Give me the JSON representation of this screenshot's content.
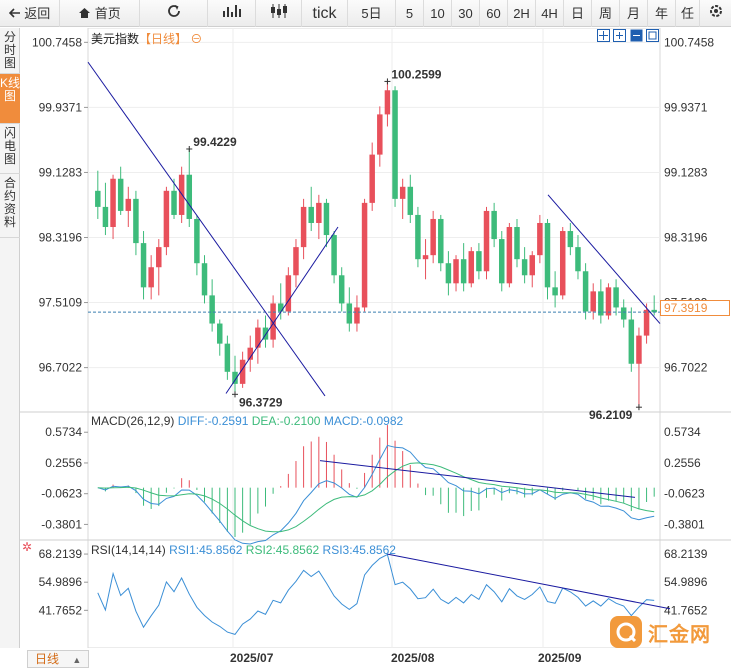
{
  "toolbar": {
    "back_label": "返回",
    "home_label": "首页",
    "tick_label": "tick",
    "periods": [
      "5日",
      "5",
      "10",
      "30",
      "60",
      "2H",
      "4H",
      "日",
      "周",
      "月",
      "年",
      "任"
    ]
  },
  "sidebar": {
    "tabs": [
      "分时图",
      "K线图",
      "闪电图",
      "合约资料"
    ]
  },
  "main": {
    "title": "美元指数",
    "period_tag": "【日线】",
    "price_axis": [
      "100.7458",
      "99.9371",
      "99.1283",
      "98.3196",
      "97.5109",
      "96.7022"
    ],
    "current_price": "97.3919",
    "high_label": "100.2599",
    "local_high_label": "99.4229",
    "low_label_1": "96.3729",
    "low_label_2": "96.2109"
  },
  "macd": {
    "title": "MACD(26,12,9)",
    "diff": "DIFF:-0.2591",
    "dea": "DEA:-0.2100",
    "macd": "MACD:-0.0982",
    "axis": [
      "0.5734",
      "0.2556",
      "-0.0623",
      "-0.3801"
    ]
  },
  "rsi": {
    "title": "RSI(14,14,14)",
    "rsi1": "RSI1:45.8562",
    "rsi2": "RSI2:45.8562",
    "rsi3": "RSI3:45.8562",
    "axis": [
      "68.2139",
      "54.9896",
      "41.7652"
    ]
  },
  "footer": {
    "tab": "日线",
    "dates": [
      "2025/07",
      "2025/08",
      "2025/09"
    ]
  },
  "watermark_text": "汇金网",
  "colors": {
    "up": "#e8505b",
    "down": "#3dbb7b",
    "accent": "#f08c3c",
    "trendline": "#1a1aa0",
    "diff": "#3b8fd6",
    "dea": "#3dbb7b"
  },
  "chart_data": {
    "type": "candlestick",
    "x_axis_labels": [
      "2025/07",
      "2025/08",
      "2025/09"
    ],
    "y_range": [
      96.2,
      100.75
    ],
    "candles": [
      [
        98.9,
        99.15,
        98.55,
        98.7
      ],
      [
        98.7,
        99.0,
        98.35,
        98.45
      ],
      [
        98.45,
        99.1,
        98.3,
        99.05
      ],
      [
        99.05,
        99.2,
        98.6,
        98.65
      ],
      [
        98.65,
        98.95,
        98.45,
        98.8
      ],
      [
        98.8,
        98.9,
        98.1,
        98.25
      ],
      [
        98.25,
        98.4,
        97.55,
        97.7
      ],
      [
        97.7,
        98.1,
        97.55,
        97.95
      ],
      [
        97.95,
        98.3,
        97.6,
        98.2
      ],
      [
        98.2,
        98.95,
        98.1,
        98.9
      ],
      [
        98.9,
        99.05,
        98.55,
        98.6
      ],
      [
        98.6,
        99.2,
        98.5,
        99.1
      ],
      [
        99.1,
        99.42,
        98.45,
        98.55
      ],
      [
        98.55,
        98.6,
        97.85,
        98.0
      ],
      [
        98.0,
        98.1,
        97.5,
        97.6
      ],
      [
        97.6,
        97.8,
        97.15,
        97.25
      ],
      [
        97.25,
        97.3,
        96.85,
        97.0
      ],
      [
        97.0,
        97.1,
        96.55,
        96.65
      ],
      [
        96.65,
        96.85,
        96.37,
        96.5
      ],
      [
        96.5,
        96.9,
        96.45,
        96.8
      ],
      [
        96.8,
        97.1,
        96.65,
        96.95
      ],
      [
        96.95,
        97.3,
        96.75,
        97.2
      ],
      [
        97.2,
        97.35,
        96.95,
        97.05
      ],
      [
        97.05,
        97.6,
        96.95,
        97.5
      ],
      [
        97.5,
        97.75,
        97.3,
        97.4
      ],
      [
        97.4,
        97.95,
        97.35,
        97.85
      ],
      [
        97.85,
        98.3,
        97.7,
        98.2
      ],
      [
        98.2,
        98.8,
        98.05,
        98.7
      ],
      [
        98.7,
        98.95,
        98.4,
        98.5
      ],
      [
        98.5,
        98.85,
        98.3,
        98.75
      ],
      [
        98.75,
        98.8,
        98.2,
        98.35
      ],
      [
        98.35,
        98.4,
        97.75,
        97.85
      ],
      [
        97.85,
        97.95,
        97.4,
        97.5
      ],
      [
        97.5,
        97.7,
        97.15,
        97.25
      ],
      [
        97.25,
        97.6,
        97.15,
        97.45
      ],
      [
        97.45,
        98.8,
        97.4,
        98.75
      ],
      [
        98.75,
        99.5,
        98.65,
        99.35
      ],
      [
        99.35,
        99.95,
        99.2,
        99.85
      ],
      [
        99.85,
        100.26,
        99.7,
        100.15
      ],
      [
        100.15,
        100.2,
        98.7,
        98.8
      ],
      [
        98.8,
        99.05,
        98.55,
        98.95
      ],
      [
        98.95,
        99.1,
        98.5,
        98.6
      ],
      [
        98.6,
        98.7,
        97.95,
        98.05
      ],
      [
        98.05,
        98.3,
        97.8,
        98.1
      ],
      [
        98.1,
        98.65,
        98.0,
        98.55
      ],
      [
        98.55,
        98.6,
        97.9,
        98.0
      ],
      [
        98.0,
        98.15,
        97.6,
        97.75
      ],
      [
        97.75,
        98.1,
        97.65,
        98.05
      ],
      [
        98.05,
        98.25,
        97.65,
        97.75
      ],
      [
        97.75,
        98.2,
        97.7,
        98.15
      ],
      [
        98.15,
        98.25,
        97.8,
        97.9
      ],
      [
        97.9,
        98.7,
        97.8,
        98.65
      ],
      [
        98.65,
        98.75,
        98.2,
        98.3
      ],
      [
        98.3,
        98.4,
        97.65,
        97.75
      ],
      [
        97.75,
        98.5,
        97.7,
        98.45
      ],
      [
        98.45,
        98.55,
        97.95,
        98.05
      ],
      [
        98.05,
        98.2,
        97.75,
        97.85
      ],
      [
        97.85,
        98.15,
        97.7,
        98.1
      ],
      [
        98.1,
        98.6,
        98.0,
        98.5
      ],
      [
        98.5,
        98.55,
        97.55,
        97.7
      ],
      [
        97.7,
        97.9,
        97.45,
        97.6
      ],
      [
        97.6,
        98.45,
        97.55,
        98.4
      ],
      [
        98.4,
        98.5,
        98.1,
        98.2
      ],
      [
        98.2,
        98.35,
        97.8,
        97.9
      ],
      [
        97.9,
        98.0,
        97.3,
        97.4
      ],
      [
        97.4,
        97.75,
        97.3,
        97.65
      ],
      [
        97.65,
        97.8,
        97.25,
        97.35
      ],
      [
        97.35,
        97.75,
        97.3,
        97.7
      ],
      [
        97.7,
        97.8,
        97.35,
        97.45
      ],
      [
        97.45,
        97.55,
        97.2,
        97.3
      ],
      [
        97.3,
        97.45,
        96.65,
        96.75
      ],
      [
        96.75,
        97.2,
        96.21,
        97.1
      ],
      [
        97.1,
        97.5,
        97.0,
        97.42
      ],
      [
        97.42,
        97.6,
        97.35,
        97.39
      ]
    ],
    "macd_range": [
      -0.5,
      0.7
    ],
    "rsi_range": [
      25,
      72
    ]
  }
}
